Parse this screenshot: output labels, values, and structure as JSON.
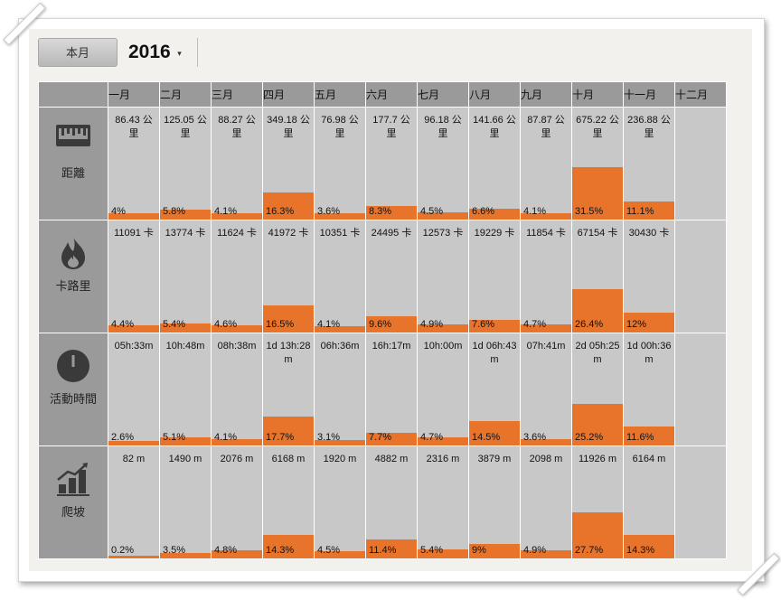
{
  "toolbar": {
    "month_button": "本月",
    "year": "2016",
    "caret": "▾"
  },
  "months": [
    "一月",
    "二月",
    "三月",
    "四月",
    "五月",
    "六月",
    "七月",
    "八月",
    "九月",
    "十月",
    "十一月",
    "十二月"
  ],
  "colors": {
    "bar": "#e8732a",
    "cell": "#c9c8c9",
    "header": "#9a9a9a"
  },
  "rows": [
    {
      "name": "distance",
      "label": "距離",
      "icon": "ruler-icon",
      "values": [
        "86.43 公里",
        "125.05 公里",
        "88.27 公里",
        "349.18 公里",
        "76.98 公里",
        "177.7 公里",
        "96.18 公里",
        "141.66 公里",
        "87.87 公里",
        "675.22 公里",
        "236.88 公里",
        ""
      ],
      "percents": [
        "4%",
        "5.8%",
        "4.1%",
        "16.3%",
        "3.6%",
        "8.3%",
        "4.5%",
        "6.6%",
        "4.1%",
        "31.5%",
        "11.1%",
        ""
      ],
      "fractions": [
        0.04,
        0.058,
        0.041,
        0.163,
        0.036,
        0.083,
        0.045,
        0.066,
        0.041,
        0.315,
        0.111,
        0
      ]
    },
    {
      "name": "calories",
      "label": "卡路里",
      "icon": "flame-icon",
      "values": [
        "11091 卡",
        "13774 卡",
        "11624 卡",
        "41972 卡",
        "10351 卡",
        "24495 卡",
        "12573 卡",
        "19229 卡",
        "11854 卡",
        "67154 卡",
        "30430 卡",
        ""
      ],
      "percents": [
        "4.4%",
        "5.4%",
        "4.6%",
        "16.5%",
        "4.1%",
        "9.6%",
        "4.9%",
        "7.6%",
        "4.7%",
        "26.4%",
        "12%",
        ""
      ],
      "fractions": [
        0.044,
        0.054,
        0.046,
        0.165,
        0.041,
        0.096,
        0.049,
        0.076,
        0.047,
        0.264,
        0.12,
        0
      ]
    },
    {
      "name": "active-time",
      "label": "活動時間",
      "icon": "clock-icon",
      "values": [
        "05h:33m",
        "10h:48m",
        "08h:38m",
        "1d 13h:28m",
        "06h:36m",
        "16h:17m",
        "10h:00m",
        "1d 06h:43m",
        "07h:41m",
        "2d 05h:25m",
        "1d 00h:36m",
        ""
      ],
      "percents": [
        "2.6%",
        "5.1%",
        "4.1%",
        "17.7%",
        "3.1%",
        "7.7%",
        "4.7%",
        "14.5%",
        "3.6%",
        "25.2%",
        "11.6%",
        ""
      ],
      "fractions": [
        0.026,
        0.051,
        0.041,
        0.177,
        0.031,
        0.077,
        0.047,
        0.145,
        0.036,
        0.252,
        0.116,
        0
      ]
    },
    {
      "name": "climb",
      "label": "爬坡",
      "icon": "climb-chart-icon",
      "values": [
        "82 m",
        "1490 m",
        "2076 m",
        "6168 m",
        "1920 m",
        "4882 m",
        "2316 m",
        "3879 m",
        "2098 m",
        "11926 m",
        "6164 m",
        ""
      ],
      "percents": [
        "0.2%",
        "3.5%",
        "4.8%",
        "14.3%",
        "4.5%",
        "11.4%",
        "5.4%",
        "9%",
        "4.9%",
        "27.7%",
        "14.3%",
        ""
      ],
      "fractions": [
        0.002,
        0.035,
        0.048,
        0.143,
        0.045,
        0.114,
        0.054,
        0.09,
        0.049,
        0.277,
        0.143,
        0
      ]
    }
  ]
}
